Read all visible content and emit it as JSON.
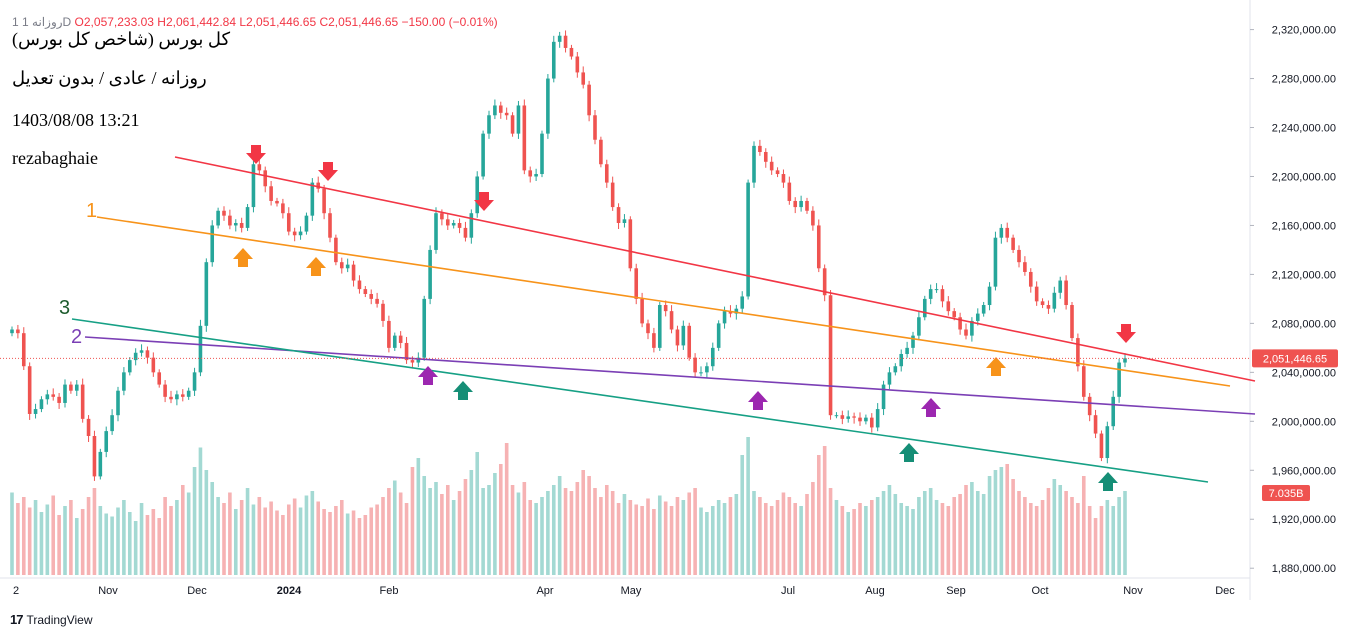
{
  "header": {
    "ohlc_prefix": "1 روزانه 1D",
    "o": "O2,057,233.03",
    "h": "H2,061,442.84",
    "l": "L2,051,446.65",
    "c": "C2,051,446.65",
    "change": "−150.00 (−0.01%)"
  },
  "info": {
    "title": "کل بورس (شاخص کل بورس)",
    "subtitle": "روزانه / عادی / بدون تعدیل",
    "datetime": "1403/08/08 13:21",
    "author": "rezabaghaie"
  },
  "brand": {
    "name": "TradingView"
  },
  "colors": {
    "up": "#26a69a",
    "down": "#ef5350",
    "line_red": "#f23645",
    "line_orange": "#f7931a",
    "line_purple": "#7b3fb5",
    "line_teal": "#16a085"
  },
  "chart_data": {
    "type": "candlestick",
    "y_ticks": [
      "2,320,000.00",
      "2,280,000.00",
      "2,240,000.00",
      "2,200,000.00",
      "2,160,000.00",
      "2,120,000.00",
      "2,080,000.00",
      "2,040,000.00",
      "2,000,000.00",
      "1,960,000.00",
      "1,920,000.00",
      "1,880,000.00"
    ],
    "ylim": [
      1872000,
      2336000
    ],
    "x_ticks": [
      "2",
      "Nov",
      "Dec",
      "2024",
      "Feb",
      "Apr",
      "May",
      "Jul",
      "Aug",
      "Sep",
      "Oct",
      "Nov",
      "Dec"
    ],
    "last_price_label": "2,051,446.65",
    "volume_label": "7.035B",
    "closes": [
      2075000,
      2072000,
      2045000,
      2006000,
      2010000,
      2018000,
      2022000,
      2020000,
      2015000,
      2030000,
      2025000,
      2030000,
      2002000,
      1988000,
      1955000,
      1975000,
      1992000,
      2005000,
      2025000,
      2040000,
      2050000,
      2056000,
      2058000,
      2052000,
      2040000,
      2030000,
      2020000,
      2018000,
      2022000,
      2020000,
      2025000,
      2040000,
      2078000,
      2130000,
      2160000,
      2172000,
      2168000,
      2160000,
      2162000,
      2158000,
      2175000,
      2210000,
      2205000,
      2192000,
      2180000,
      2178000,
      2170000,
      2155000,
      2152000,
      2155000,
      2168000,
      2195000,
      2190000,
      2170000,
      2150000,
      2130000,
      2125000,
      2128000,
      2115000,
      2108000,
      2104000,
      2100000,
      2096000,
      2082000,
      2060000,
      2070000,
      2064000,
      2050000,
      2048000,
      2052000,
      2100000,
      2140000,
      2170000,
      2165000,
      2160000,
      2162000,
      2158000,
      2150000,
      2170000,
      2200000,
      2235000,
      2250000,
      2258000,
      2252000,
      2250000,
      2235000,
      2258000,
      2205000,
      2200000,
      2202000,
      2235000,
      2280000,
      2310000,
      2315000,
      2305000,
      2298000,
      2285000,
      2275000,
      2250000,
      2230000,
      2210000,
      2195000,
      2175000,
      2162000,
      2165000,
      2125000,
      2100000,
      2080000,
      2072000,
      2060000,
      2095000,
      2090000,
      2075000,
      2062000,
      2078000,
      2052000,
      2040000,
      2040000,
      2045000,
      2060000,
      2080000,
      2090000,
      2088000,
      2092000,
      2102000,
      2195000,
      2225000,
      2220000,
      2212000,
      2205000,
      2202000,
      2195000,
      2180000,
      2175000,
      2180000,
      2172000,
      2160000,
      2125000,
      2103000,
      2005000,
      2005000,
      2002000,
      2004000,
      2003000,
      2000000,
      2003000,
      1995000,
      2010000,
      2030000,
      2040000,
      2045000,
      2055000,
      2060000,
      2070000,
      2085000,
      2100000,
      2108000,
      2108000,
      2098000,
      2090000,
      2085000,
      2075000,
      2070000,
      2082000,
      2088000,
      2095000,
      2110000,
      2150000,
      2158000,
      2150000,
      2140000,
      2130000,
      2122000,
      2110000,
      2098000,
      2095000,
      2092000,
      2105000,
      2115000,
      2095000,
      2068000,
      2045000,
      2020000,
      2005000,
      1990000,
      1970000,
      1996000,
      2020000,
      2048000,
      2051446.65
    ],
    "volumes_pct": [
      55,
      48,
      52,
      45,
      50,
      42,
      47,
      53,
      40,
      46,
      50,
      38,
      44,
      52,
      58,
      46,
      41,
      39,
      45,
      50,
      42,
      36,
      48,
      40,
      44,
      38,
      52,
      46,
      50,
      60,
      55,
      72,
      85,
      70,
      62,
      52,
      48,
      55,
      44,
      50,
      58,
      47,
      52,
      45,
      49,
      43,
      40,
      47,
      51,
      45,
      53,
      56,
      49,
      44,
      42,
      46,
      50,
      41,
      43,
      38,
      40,
      45,
      47,
      52,
      58,
      63,
      55,
      48,
      72,
      78,
      66,
      58,
      62,
      54,
      60,
      50,
      56,
      64,
      70,
      82,
      58,
      60,
      68,
      74,
      88,
      60,
      55,
      62,
      50,
      48,
      52,
      56,
      60,
      66,
      58,
      56,
      62,
      70,
      66,
      58,
      52,
      60,
      56,
      48,
      54,
      50,
      47,
      46,
      51,
      44,
      53,
      49,
      46,
      52,
      50,
      55,
      58,
      45,
      42,
      46,
      50,
      48,
      52,
      54,
      80,
      92,
      56,
      52,
      48,
      46,
      50,
      55,
      52,
      48,
      46,
      54,
      62,
      80,
      86,
      58,
      50,
      46,
      42,
      44,
      48,
      46,
      50,
      52,
      56,
      60,
      54,
      48,
      46,
      44,
      52,
      56,
      58,
      50,
      48,
      46,
      52,
      54,
      60,
      62,
      56,
      54,
      66,
      70,
      72,
      74,
      64,
      56,
      52,
      48,
      46,
      50,
      58,
      64,
      60,
      56,
      52,
      48,
      66,
      46,
      38,
      46,
      50,
      46,
      52,
      56,
      60,
      76
    ],
    "annotations": [
      "1",
      "2",
      "3"
    ]
  }
}
